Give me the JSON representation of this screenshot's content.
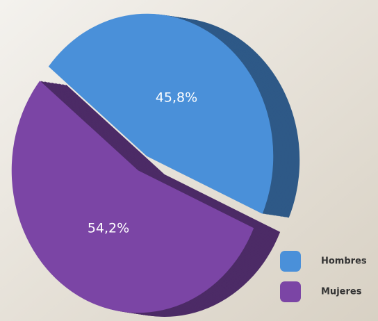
{
  "chart_data": {
    "type": "pie",
    "categories": [
      "Hombres",
      "Mujeres"
    ],
    "values": [
      45.8,
      54.2
    ],
    "value_labels": [
      "45,8%",
      "54,2%"
    ],
    "colors": [
      "#4a90d9",
      "#7b45a5"
    ],
    "legend": "bottom-right"
  }
}
